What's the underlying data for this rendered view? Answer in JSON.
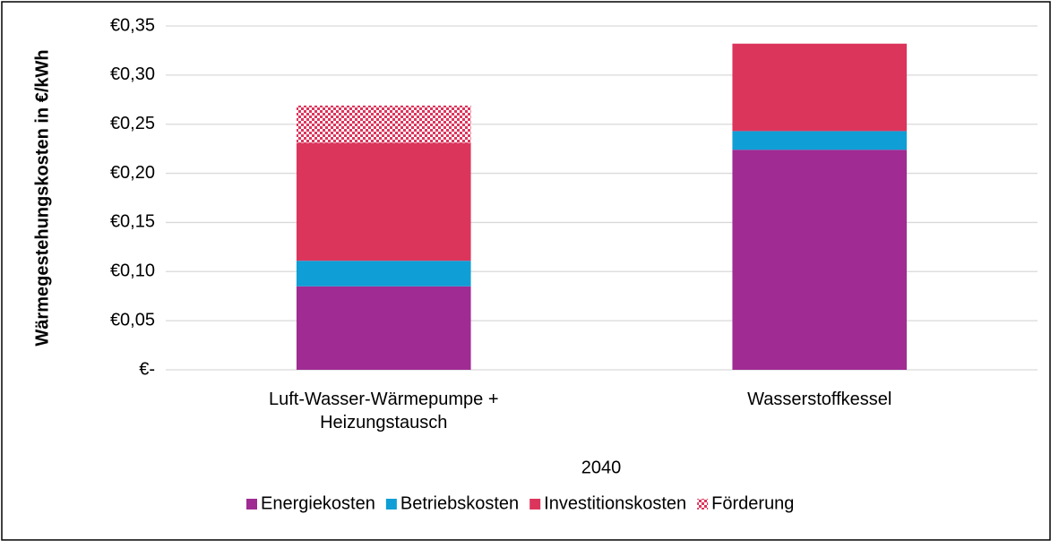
{
  "chart_data": {
    "type": "stacked_bar",
    "y_label": "Wärmegestehungskosten in €/kWh",
    "x_label": "2040",
    "categories": [
      "Luft-Wasser-Wärmepumpe +\nHeizungstausch",
      "Wasserstoffkessel"
    ],
    "series": [
      {
        "name": "Energiekosten",
        "color": "#a02b93",
        "values": [
          0.085,
          0.224
        ]
      },
      {
        "name": "Betriebskosten",
        "color": "#0f9ed5",
        "values": [
          0.026,
          0.019
        ]
      },
      {
        "name": "Investitionskosten",
        "color": "#dc355c",
        "values": [
          0.12,
          0.089
        ]
      },
      {
        "name": "Förderung",
        "color": "#dc355c",
        "hatched": true,
        "values": [
          0.038,
          null
        ]
      }
    ],
    "ylim": [
      0,
      0.35
    ],
    "yticks": [
      {
        "value": 0,
        "label": "€-"
      },
      {
        "value": 0.05,
        "label": "€0,05"
      },
      {
        "value": 0.1,
        "label": "€0,10"
      },
      {
        "value": 0.15,
        "label": "€0,15"
      },
      {
        "value": 0.2,
        "label": "€0,20"
      },
      {
        "value": 0.25,
        "label": "€0,25"
      },
      {
        "value": 0.3,
        "label": "€0,30"
      },
      {
        "value": 0.35,
        "label": "€0,35"
      }
    ],
    "grid": true,
    "legend": "bottom"
  }
}
